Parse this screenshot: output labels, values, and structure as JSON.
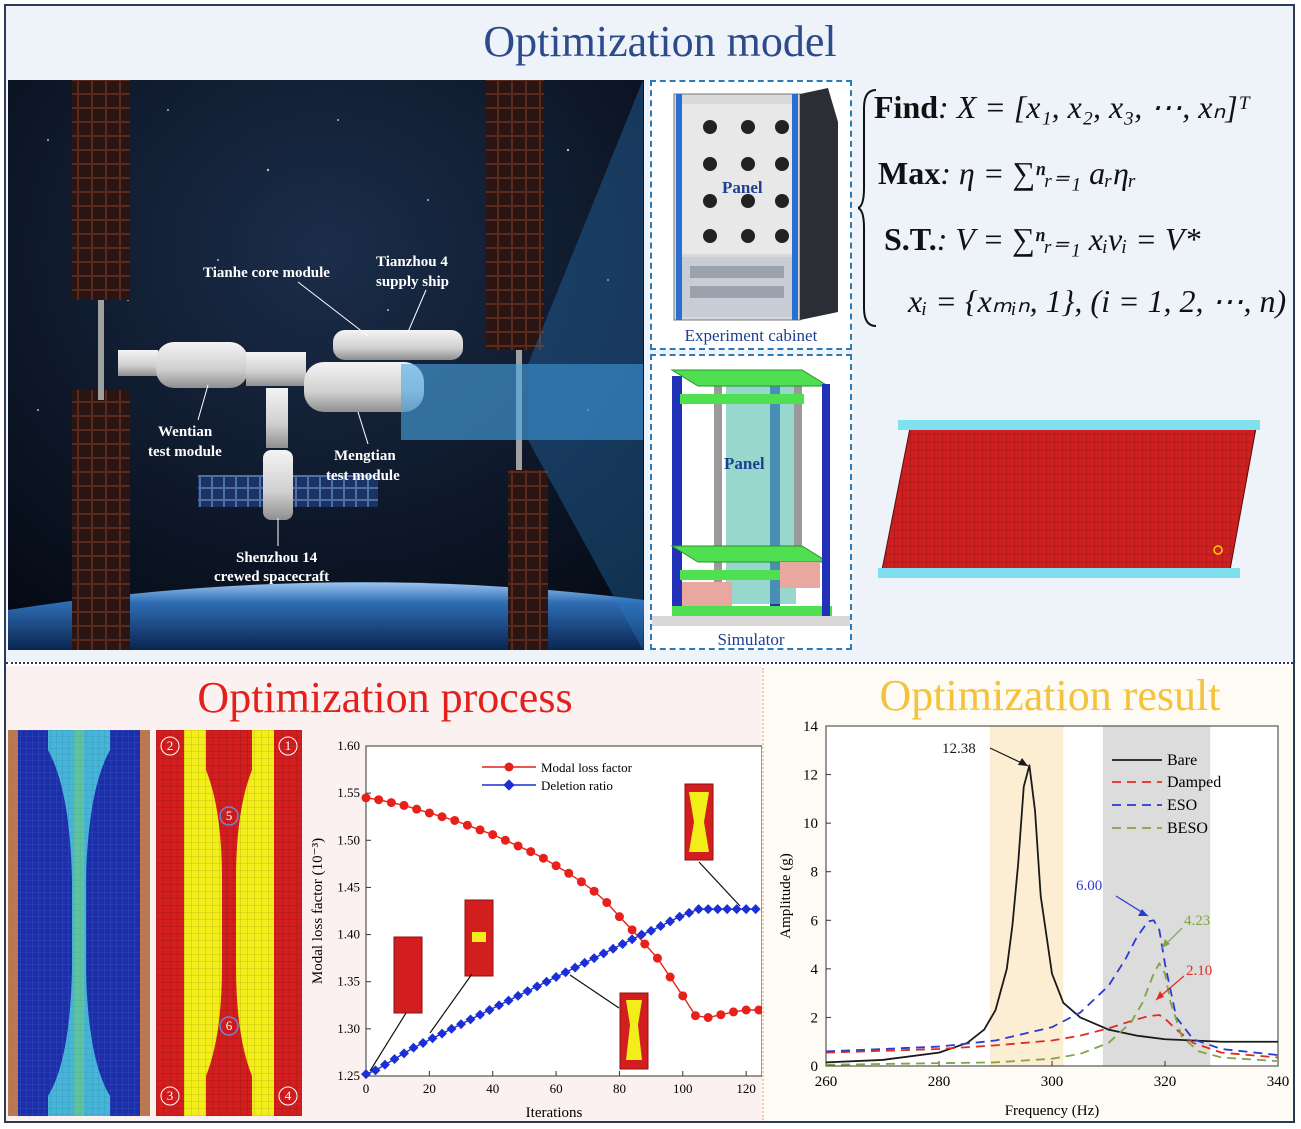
{
  "titles": {
    "model": "Optimization model",
    "process": "Optimization process",
    "result": "Optimization result"
  },
  "space_station": {
    "labels": {
      "tianhe": "Tianhe core module",
      "tianzhou_1": "Tianzhou 4",
      "tianzhou_2": "supply ship",
      "wentian_1": "Wentian",
      "wentian_2": "test module",
      "mengtian_1": "Mengtian",
      "mengtian_2": "test module",
      "shenzhou_1": "Shenzhou 14",
      "shenzhou_2": "crewed spacecraft"
    }
  },
  "cabinet": {
    "panel_label": "Panel",
    "caption": "Experiment  cabinet"
  },
  "simulator": {
    "panel_label": "Panel",
    "caption": "Simulator"
  },
  "equations": {
    "find_kw": "Find",
    "find_expr": ": X = [x₁, x₂, x₃, ⋯, xₙ]ᵀ",
    "max_kw": "Max",
    "max_expr": ": η = ∑ⁿᵣ₌₁ aᵣηᵣ",
    "st_kw": "S.T.",
    "st_expr": ": V = ∑ⁿᵣ₌₁ xᵢvᵢ = V*",
    "cond_expr": "xᵢ = {xₘᵢₙ, 1}, (i = 1, 2, ⋯, n)"
  },
  "topology_markers": [
    "2",
    "1",
    "5",
    "6",
    "3",
    "4"
  ],
  "process_chart": {
    "type": "line",
    "xlabel": "Iterations",
    "ylabel": "Modal loss factor (10⁻³)",
    "xlim": [
      0,
      125
    ],
    "ylim": [
      1.25,
      1.6
    ],
    "xticks": [
      0,
      20,
      40,
      60,
      80,
      100,
      120
    ],
    "yticks": [
      1.25,
      1.3,
      1.35,
      1.4,
      1.45,
      1.5,
      1.55,
      1.6
    ],
    "ytick_labels": [
      "1.25",
      "1.30",
      "1.35",
      "1.40",
      "1.45",
      "1.50",
      "1.55",
      "1.60"
    ],
    "series": [
      {
        "name": "Modal loss factor",
        "color": "#e8201c",
        "marker": "circle",
        "x": [
          0,
          4,
          8,
          12,
          16,
          20,
          24,
          28,
          32,
          36,
          40,
          44,
          48,
          52,
          56,
          60,
          64,
          68,
          72,
          76,
          80,
          84,
          88,
          92,
          96,
          100,
          104,
          108,
          112,
          116,
          120,
          124
        ],
        "y": [
          1.545,
          1.543,
          1.54,
          1.537,
          1.533,
          1.529,
          1.525,
          1.521,
          1.516,
          1.511,
          1.506,
          1.5,
          1.494,
          1.488,
          1.481,
          1.473,
          1.465,
          1.456,
          1.446,
          1.434,
          1.419,
          1.405,
          1.39,
          1.375,
          1.355,
          1.335,
          1.314,
          1.312,
          1.315,
          1.318,
          1.32,
          1.32
        ]
      },
      {
        "name": "Deletion ratio",
        "color": "#1a2fd6",
        "marker": "diamond",
        "x": [
          0,
          3,
          6,
          9,
          12,
          15,
          18,
          21,
          24,
          27,
          30,
          33,
          36,
          39,
          42,
          45,
          48,
          51,
          54,
          57,
          60,
          63,
          66,
          69,
          72,
          75,
          78,
          81,
          84,
          87,
          90,
          93,
          96,
          99,
          102,
          105,
          108,
          111,
          114,
          117,
          120,
          123
        ],
        "y": [
          1.252,
          1.256,
          1.262,
          1.268,
          1.274,
          1.28,
          1.285,
          1.29,
          1.295,
          1.3,
          1.305,
          1.31,
          1.315,
          1.32,
          1.325,
          1.33,
          1.335,
          1.34,
          1.345,
          1.35,
          1.355,
          1.36,
          1.365,
          1.37,
          1.375,
          1.38,
          1.385,
          1.39,
          1.395,
          1.4,
          1.404,
          1.409,
          1.414,
          1.419,
          1.423,
          1.427,
          1.427,
          1.427,
          1.427,
          1.427,
          1.427,
          1.427
        ]
      }
    ]
  },
  "result_chart": {
    "type": "line",
    "xlabel": "Frequency (Hz)",
    "ylabel": "Amplitude (g)",
    "xlim": [
      260,
      340
    ],
    "ylim": [
      0,
      14
    ],
    "xticks": [
      260,
      280,
      300,
      320,
      340
    ],
    "yticks": [
      0,
      2,
      4,
      6,
      8,
      10,
      12,
      14
    ],
    "bands": [
      {
        "x0": 289,
        "x1": 302,
        "color": "#fbeed3"
      },
      {
        "x0": 309,
        "x1": 328,
        "color": "#dcdcdc"
      }
    ],
    "series": [
      {
        "name": "Bare",
        "color": "#1a1a1a",
        "dash": false,
        "x": [
          260,
          270,
          280,
          285,
          288,
          290,
          292,
          293,
          294,
          295,
          296,
          297,
          298,
          300,
          302,
          305,
          310,
          315,
          320,
          330,
          340
        ],
        "y": [
          0.15,
          0.25,
          0.55,
          0.95,
          1.5,
          2.3,
          4.0,
          5.8,
          8.3,
          11.5,
          12.38,
          10.5,
          7.0,
          3.8,
          2.6,
          2.0,
          1.5,
          1.25,
          1.1,
          1.0,
          1.0
        ]
      },
      {
        "name": "Damped",
        "color": "#e02b20",
        "dash": true,
        "x": [
          260,
          280,
          290,
          300,
          305,
          310,
          314,
          317,
          319,
          320,
          322,
          325,
          330,
          340
        ],
        "y": [
          0.55,
          0.7,
          0.85,
          1.05,
          1.25,
          1.55,
          1.85,
          2.05,
          2.1,
          1.95,
          1.5,
          0.95,
          0.55,
          0.35
        ]
      },
      {
        "name": "ESO",
        "color": "#2a3bd0",
        "dash": true,
        "x": [
          260,
          280,
          290,
          300,
          305,
          310,
          313,
          315,
          317,
          318,
          319,
          320,
          322,
          325,
          330,
          340
        ],
        "y": [
          0.6,
          0.8,
          1.05,
          1.6,
          2.2,
          3.3,
          4.4,
          5.3,
          5.95,
          6.0,
          5.6,
          4.2,
          2.0,
          1.1,
          0.7,
          0.45
        ]
      },
      {
        "name": "BESO",
        "color": "#7fa544",
        "dash": true,
        "x": [
          260,
          290,
          300,
          305,
          310,
          314,
          316,
          318,
          319,
          320,
          321,
          323,
          326,
          330,
          340
        ],
        "y": [
          0.05,
          0.15,
          0.3,
          0.5,
          0.95,
          1.8,
          2.6,
          3.8,
          4.23,
          3.8,
          2.6,
          1.2,
          0.6,
          0.35,
          0.2
        ]
      }
    ],
    "annotations": [
      {
        "text": "12.38",
        "color": "#1a1a1a"
      },
      {
        "text": "6.00",
        "color": "#2a3bd0"
      },
      {
        "text": "4.23",
        "color": "#7fa544"
      },
      {
        "text": "2.10",
        "color": "#e02b20"
      }
    ]
  }
}
